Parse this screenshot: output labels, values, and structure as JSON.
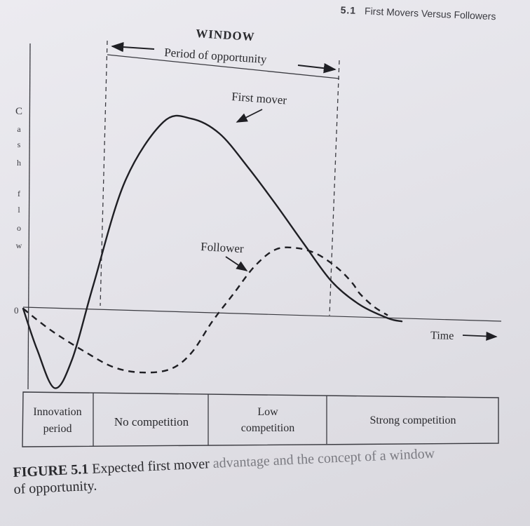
{
  "header": {
    "section_number": "5.1",
    "section_title": "First Movers Versus Followers"
  },
  "figure": {
    "window_label": "WINDOW",
    "period_label": "Period of opportunity",
    "y_axis_label": "Cash flow",
    "y_axis_letters": [
      "C",
      "a",
      "s",
      "h",
      "f",
      "l",
      "o",
      "w"
    ],
    "zero_label": "0",
    "x_axis_label": "Time"
  },
  "chart_data": {
    "type": "line",
    "title": "",
    "xlabel": "Time",
    "ylabel": "Cash flow",
    "x_ticks": [],
    "y_ticks": [
      "0"
    ],
    "grid": false,
    "legend": "none",
    "series": [
      {
        "name": "First mover",
        "style": "solid",
        "color": "#1f1f24",
        "x": [
          0,
          20,
          45,
          70,
          100,
          145,
          200,
          240,
          280,
          320,
          360,
          400,
          440,
          480,
          520,
          540
        ],
        "y": [
          0,
          -58,
          -112,
          -70,
          36,
          185,
          272,
          278,
          258,
          212,
          160,
          105,
          52,
          20,
          2,
          -2
        ]
      },
      {
        "name": "Follower",
        "style": "dashed",
        "color": "#1f1f24",
        "x": [
          0,
          40,
          90,
          130,
          170,
          210,
          240,
          270,
          300,
          330,
          360,
          390,
          420,
          450,
          470,
          480,
          500,
          520
        ],
        "y": [
          0,
          -30,
          -60,
          -80,
          -86,
          -80,
          -56,
          -10,
          30,
          70,
          95,
          98,
          90,
          70,
          50,
          36,
          18,
          6
        ]
      }
    ],
    "annotations": [
      "First mover",
      "Follower"
    ],
    "phases": [
      {
        "label": "Innovation period",
        "lines": [
          "Innovation",
          "period"
        ]
      },
      {
        "label": "No competition",
        "lines": [
          "No competition"
        ]
      },
      {
        "label": "Low competition",
        "lines": [
          "Low",
          "competition"
        ]
      },
      {
        "label": "Strong competition",
        "lines": [
          "Strong competition"
        ]
      }
    ]
  },
  "caption": {
    "figure_number": "FIGURE 5.1",
    "text_dark": "Expected first mover",
    "text_faded": "advantage and the concept of a window",
    "text_line2": "of opportunity."
  }
}
